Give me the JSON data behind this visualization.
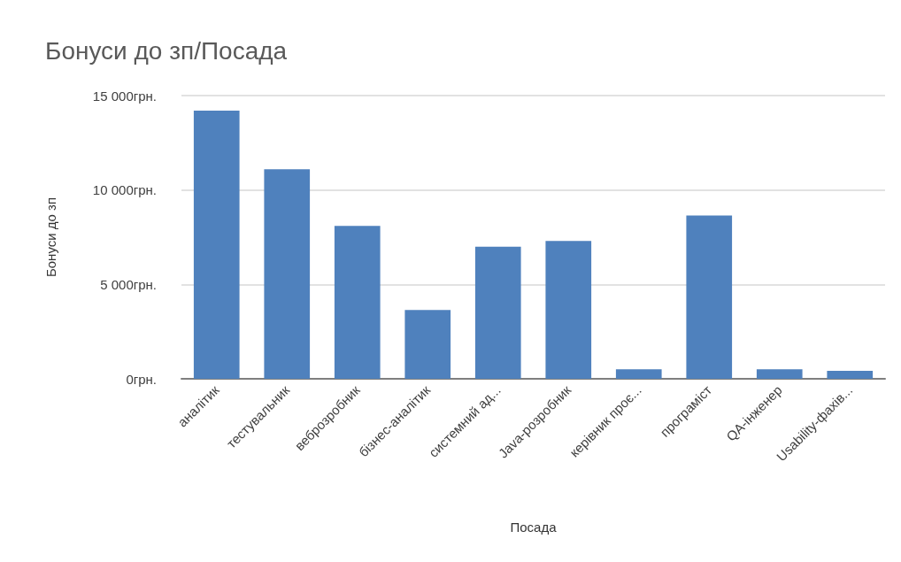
{
  "chart_data": {
    "type": "bar",
    "title": "Бонуси до зп/Посада",
    "xlabel": "Посада",
    "ylabel": "Бонуси до зп",
    "categories": [
      "аналітик",
      "тестувальник",
      "веброзробник",
      "бізнес-аналітик",
      "системний ад...",
      "Java-розробник",
      "керівник проє...",
      "програміст",
      "QA-інженер",
      "Usability-фахів..."
    ],
    "values": [
      14200,
      11100,
      8100,
      3650,
      7000,
      7300,
      500,
      8650,
      500,
      420
    ],
    "color": "#4f81bd",
    "ylim": [
      0,
      15000
    ],
    "yticks": [
      {
        "value": 0,
        "label": "0грн."
      },
      {
        "value": 5000,
        "label": "5 000грн."
      },
      {
        "value": 10000,
        "label": "10 000грн."
      },
      {
        "value": 15000,
        "label": "15 000грн."
      }
    ],
    "grid": "y"
  }
}
